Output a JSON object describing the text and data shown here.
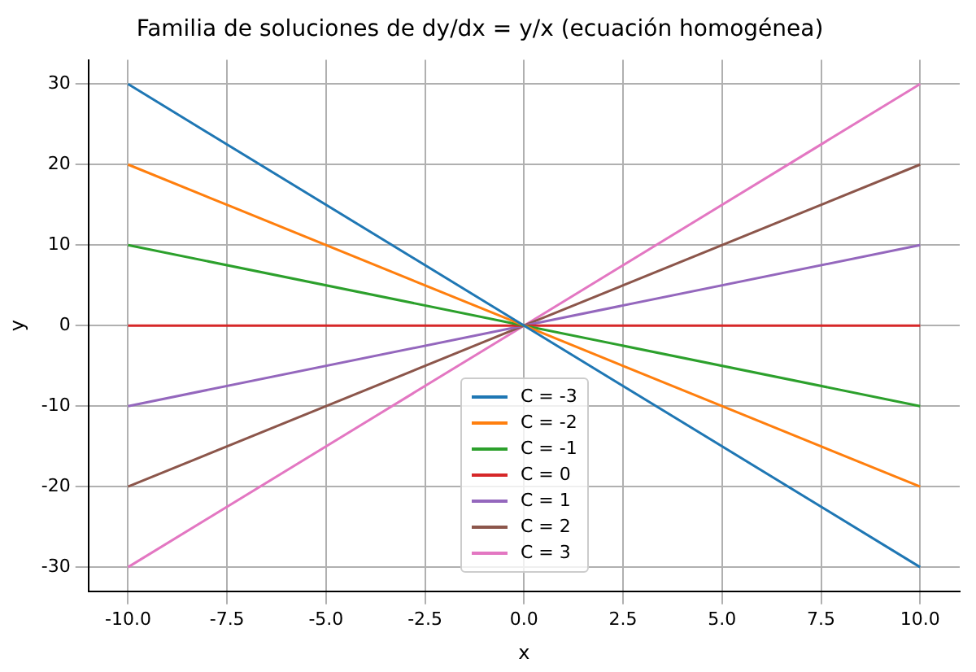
{
  "chart_data": {
    "type": "line",
    "title": "Familia de soluciones de dy/dx = y/x (ecuación homogénea)",
    "xlabel": "x",
    "ylabel": "y",
    "x": [
      -10,
      0,
      10
    ],
    "series": [
      {
        "name": "C = -3",
        "color": "#1f77b4",
        "values": [
          30,
          0,
          -30
        ]
      },
      {
        "name": "C = -2",
        "color": "#ff7f0e",
        "values": [
          20,
          0,
          -20
        ]
      },
      {
        "name": "C = -1",
        "color": "#2ca02c",
        "values": [
          10,
          0,
          -10
        ]
      },
      {
        "name": "C = 0",
        "color": "#d62728",
        "values": [
          0,
          0,
          0
        ]
      },
      {
        "name": "C = 1",
        "color": "#9467bd",
        "values": [
          -10,
          0,
          10
        ]
      },
      {
        "name": "C = 2",
        "color": "#8c564b",
        "values": [
          -20,
          0,
          20
        ]
      },
      {
        "name": "C = 3",
        "color": "#e377c2",
        "values": [
          -30,
          0,
          30
        ]
      }
    ],
    "xlim": [
      -11,
      11
    ],
    "xticks": [
      {
        "value": -10,
        "label": "-10.0"
      },
      {
        "value": -7.5,
        "label": "-7.5"
      },
      {
        "value": -5,
        "label": "-5.0"
      },
      {
        "value": -2.5,
        "label": "-2.5"
      },
      {
        "value": 0,
        "label": "0.0"
      },
      {
        "value": 2.5,
        "label": "2.5"
      },
      {
        "value": 5,
        "label": "5.0"
      },
      {
        "value": 7.5,
        "label": "7.5"
      },
      {
        "value": 10,
        "label": "10.0"
      }
    ],
    "ylim": [
      -33,
      33
    ],
    "yticks": [
      -30,
      -20,
      -10,
      0,
      10,
      20,
      30
    ],
    "grid": true,
    "legend": "bottom",
    "marker": "none",
    "line_style": "solid"
  }
}
